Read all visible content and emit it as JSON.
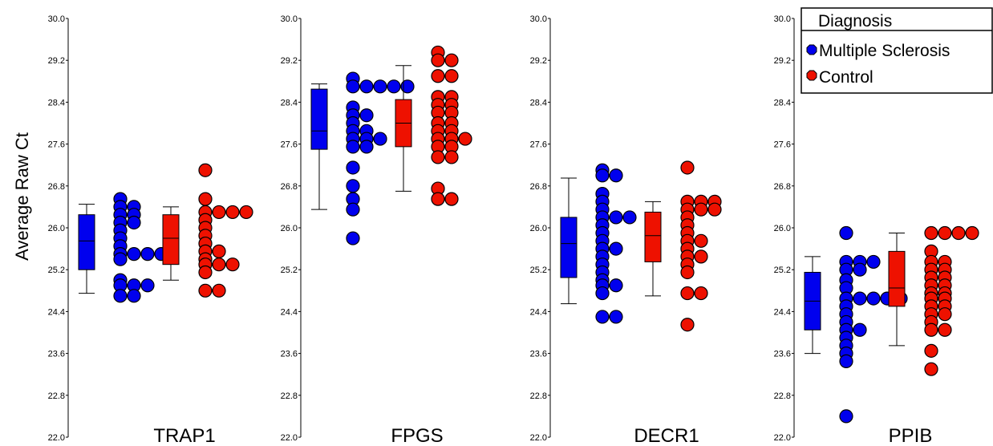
{
  "chart_data": {
    "type": "scatter",
    "subtype": "box-and-dot-plot",
    "ylabel": "Average Raw Ct",
    "ylim": [
      22.0,
      30.0
    ],
    "yticks": [
      "22.0",
      "22.8",
      "23.6",
      "24.4",
      "25.2",
      "26.0",
      "26.8",
      "27.6",
      "28.4",
      "29.2",
      "30.0"
    ],
    "grid": false,
    "legend": {
      "title": "Diagnosis",
      "placement": "top-right",
      "entries": [
        {
          "label": "Multiple Sclerosis",
          "color": "#0000ee"
        },
        {
          "label": "Control",
          "color": "#ee1100"
        }
      ]
    },
    "series_colors": {
      "Multiple Sclerosis": "#0000ee",
      "Control": "#ee1100"
    },
    "panels": [
      {
        "title": "TRAP1",
        "groups": [
          {
            "name": "Multiple Sclerosis",
            "box": {
              "whisker_low": 24.75,
              "q1": 25.2,
              "median": 25.75,
              "q3": 26.25,
              "whisker_high": 26.45
            },
            "points": [
              26.55,
              26.4,
              26.4,
              26.25,
              26.25,
              26.1,
              26.1,
              25.95,
              25.8,
              25.65,
              25.5,
              25.5,
              25.5,
              25.5,
              25.4,
              25.0,
              24.9,
              24.9,
              24.9,
              24.7,
              24.7
            ]
          },
          {
            "name": "Control",
            "box": {
              "whisker_low": 25.0,
              "q1": 25.3,
              "median": 25.8,
              "q3": 26.25,
              "whisker_high": 26.4
            },
            "points": [
              27.1,
              26.55,
              26.3,
              26.3,
              26.3,
              26.3,
              26.15,
              26.0,
              25.85,
              25.7,
              25.55,
              25.55,
              25.4,
              25.3,
              25.3,
              25.3,
              25.15,
              24.8,
              24.8
            ]
          }
        ]
      },
      {
        "title": "FPGS",
        "groups": [
          {
            "name": "Multiple Sclerosis",
            "box": {
              "whisker_low": 26.35,
              "q1": 27.5,
              "median": 27.85,
              "q3": 28.65,
              "whisker_high": 28.75
            },
            "points": [
              28.85,
              28.7,
              28.7,
              28.7,
              28.7,
              28.7,
              28.3,
              28.15,
              28.15,
              28.0,
              27.85,
              27.85,
              27.7,
              27.7,
              27.7,
              27.55,
              27.55,
              27.15,
              26.8,
              26.55,
              26.35,
              25.8
            ]
          },
          {
            "name": "Control",
            "box": {
              "whisker_low": 26.7,
              "q1": 27.55,
              "median": 28.0,
              "q3": 28.45,
              "whisker_high": 29.1
            },
            "points": [
              29.35,
              29.2,
              29.2,
              28.9,
              28.9,
              28.5,
              28.5,
              28.35,
              28.35,
              28.2,
              28.2,
              28.0,
              28.0,
              27.85,
              27.85,
              27.7,
              27.7,
              27.7,
              27.55,
              27.55,
              27.35,
              27.35,
              26.75,
              26.55,
              26.55
            ]
          }
        ]
      },
      {
        "title": "DECR1",
        "groups": [
          {
            "name": "Multiple Sclerosis",
            "box": {
              "whisker_low": 24.55,
              "q1": 25.05,
              "median": 25.7,
              "q3": 26.2,
              "whisker_high": 26.95
            },
            "points": [
              27.1,
              27.0,
              27.0,
              26.65,
              26.5,
              26.35,
              26.2,
              26.2,
              26.2,
              26.05,
              25.9,
              25.75,
              25.6,
              25.6,
              25.45,
              25.3,
              25.15,
              25.0,
              24.9,
              24.9,
              24.75,
              24.3,
              24.3
            ]
          },
          {
            "name": "Control",
            "box": {
              "whisker_low": 24.7,
              "q1": 25.35,
              "median": 25.85,
              "q3": 26.3,
              "whisker_high": 26.5
            },
            "points": [
              27.15,
              26.5,
              26.5,
              26.5,
              26.35,
              26.35,
              26.35,
              26.2,
              26.05,
              25.9,
              25.75,
              25.75,
              25.6,
              25.45,
              25.45,
              25.3,
              25.15,
              24.75,
              24.75,
              24.15
            ]
          }
        ]
      },
      {
        "title": "PPIB",
        "groups": [
          {
            "name": "Multiple Sclerosis",
            "box": {
              "whisker_low": 23.6,
              "q1": 24.05,
              "median": 24.6,
              "q3": 25.15,
              "whisker_high": 25.45
            },
            "points": [
              25.9,
              25.35,
              25.35,
              25.35,
              25.2,
              25.2,
              25.0,
              24.85,
              24.65,
              24.65,
              24.65,
              24.65,
              24.65,
              24.5,
              24.35,
              24.2,
              24.05,
              24.05,
              23.9,
              23.75,
              23.6,
              23.45,
              22.4
            ]
          },
          {
            "name": "Control",
            "box": {
              "whisker_low": 23.75,
              "q1": 24.5,
              "median": 24.85,
              "q3": 25.55,
              "whisker_high": 25.9
            },
            "points": [
              25.9,
              25.9,
              25.9,
              25.9,
              25.55,
              25.35,
              25.35,
              25.2,
              25.2,
              25.05,
              25.05,
              24.9,
              24.9,
              24.75,
              24.75,
              24.65,
              24.65,
              24.5,
              24.5,
              24.35,
              24.35,
              24.2,
              24.05,
              24.05,
              23.65,
              23.3
            ]
          }
        ]
      }
    ]
  }
}
